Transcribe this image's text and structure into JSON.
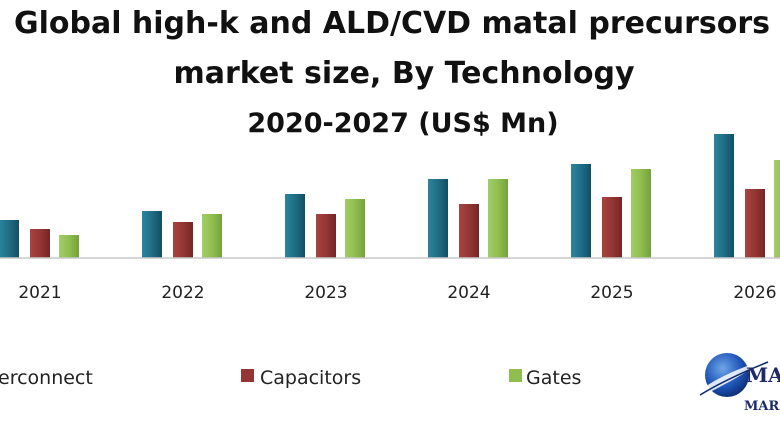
{
  "chart_data": {
    "type": "bar",
    "title": "Global high-k and ALD/CVD matal precursors",
    "title_line2": "market size, By Technology",
    "subtitle": "2020-2027 (US$ Mn)",
    "categories": [
      "2021",
      "2022",
      "2023",
      "2024",
      "2025",
      "2026"
    ],
    "series": [
      {
        "name": "Interconnect",
        "label_visible": "erconnect",
        "color": "#1f6e86",
        "values": [
          38,
          47,
          64,
          79,
          94,
          124
        ]
      },
      {
        "name": "Capacitors",
        "label_visible": "Capacitors",
        "color": "#943634",
        "values": [
          29,
          36,
          44,
          54,
          61,
          69
        ]
      },
      {
        "name": "Gates",
        "label_visible": "Gates",
        "color": "#8fbe4f",
        "values": [
          23,
          44,
          59,
          79,
          89,
          98
        ]
      }
    ],
    "ylim": [
      0,
      130
    ],
    "grid": false,
    "legend_position": "bottom"
  },
  "logo": {
    "text_top": "MA",
    "text_bottom": "MARK"
  }
}
